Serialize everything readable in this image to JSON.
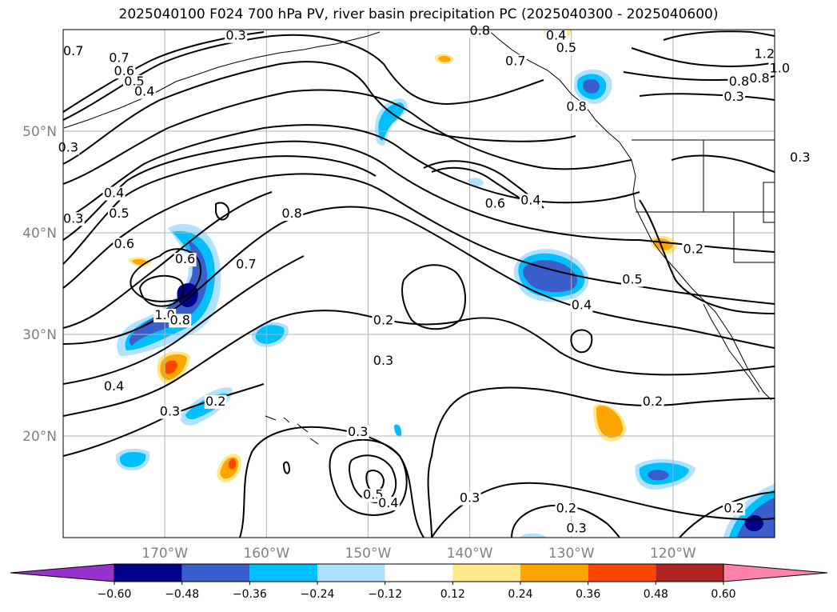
{
  "title": "2025040100 F024 700 hPa PV, river basin precipitation PC (2025040300 - 2025040600)",
  "map": {
    "lon_range": [
      -180,
      -110
    ],
    "lat_range": [
      10,
      60
    ],
    "lon_ticks": [
      {
        "value": -170,
        "label": "170°W"
      },
      {
        "value": -160,
        "label": "160°W"
      },
      {
        "value": -150,
        "label": "150°W"
      },
      {
        "value": -140,
        "label": "140°W"
      },
      {
        "value": -130,
        "label": "130°W"
      },
      {
        "value": -120,
        "label": "120°W"
      }
    ],
    "lat_ticks": [
      {
        "value": 20,
        "label": "20°N"
      },
      {
        "value": 30,
        "label": "30°N"
      },
      {
        "value": 40,
        "label": "40°N"
      },
      {
        "value": 50,
        "label": "50°N"
      }
    ],
    "gridlines": true
  },
  "colorbar": {
    "orientation": "horizontal",
    "extend": "both",
    "ticks": [
      "−0.60",
      "−0.48",
      "−0.36",
      "−0.24",
      "−0.12",
      "0.12",
      "0.24",
      "0.36",
      "0.48",
      "0.60"
    ],
    "colors": [
      "#9932cc",
      "#00008b",
      "#3a5fcd",
      "#00bfff",
      "#b0e2ff",
      "#ffffff",
      "#ffe88a",
      "#ffa500",
      "#ff4500",
      "#b22222",
      "#ff82ab"
    ]
  },
  "contour_labels": [
    {
      "text": "0.7",
      "lon": -179,
      "lat": 57.5
    },
    {
      "text": "0.7",
      "lon": -174.5,
      "lat": 56.8
    },
    {
      "text": "0.6",
      "lon": -174,
      "lat": 55.5
    },
    {
      "text": "0.5",
      "lon": -173,
      "lat": 54.5
    },
    {
      "text": "0.4",
      "lon": -172,
      "lat": 53.5
    },
    {
      "text": "0.3",
      "lon": -163,
      "lat": 59
    },
    {
      "text": "0.3",
      "lon": -179.5,
      "lat": 48
    },
    {
      "text": "0.4",
      "lon": -175,
      "lat": 43.5
    },
    {
      "text": "0.3",
      "lon": -179,
      "lat": 41
    },
    {
      "text": "0.5",
      "lon": -174.5,
      "lat": 41.5
    },
    {
      "text": "0.6",
      "lon": -174,
      "lat": 38.5
    },
    {
      "text": "0.6",
      "lon": -168,
      "lat": 37
    },
    {
      "text": "1.0",
      "lon": -170,
      "lat": 31.5
    },
    {
      "text": "0.8",
      "lon": -168.5,
      "lat": 31
    },
    {
      "text": "0.8",
      "lon": -157.5,
      "lat": 41.5
    },
    {
      "text": "0.7",
      "lon": -162,
      "lat": 36.5
    },
    {
      "text": "0.4",
      "lon": -175,
      "lat": 24.5
    },
    {
      "text": "0.3",
      "lon": -169.5,
      "lat": 22
    },
    {
      "text": "0.2",
      "lon": -165,
      "lat": 23
    },
    {
      "text": "0.8",
      "lon": -139,
      "lat": 59.5
    },
    {
      "text": "0.7",
      "lon": -135.5,
      "lat": 56.5
    },
    {
      "text": "0.4",
      "lon": -131.5,
      "lat": 59
    },
    {
      "text": "0.5",
      "lon": -130.5,
      "lat": 57.8
    },
    {
      "text": "0.8",
      "lon": -129.5,
      "lat": 52
    },
    {
      "text": "1.2",
      "lon": -111,
      "lat": 57.2
    },
    {
      "text": "1.0",
      "lon": -109.5,
      "lat": 55.8
    },
    {
      "text": "0.8",
      "lon": -111.5,
      "lat": 54.8
    },
    {
      "text": "0.8",
      "lon": -113.5,
      "lat": 54.5
    },
    {
      "text": "0.3",
      "lon": -114,
      "lat": 53
    },
    {
      "text": "0.3",
      "lon": -107.5,
      "lat": 47
    },
    {
      "text": "0.6",
      "lon": -137.5,
      "lat": 42.5
    },
    {
      "text": "0.4",
      "lon": -134,
      "lat": 42.8
    },
    {
      "text": "0.5",
      "lon": -124,
      "lat": 35
    },
    {
      "text": "0.4",
      "lon": -129,
      "lat": 32.5
    },
    {
      "text": "0.2",
      "lon": -118,
      "lat": 38
    },
    {
      "text": "0.2",
      "lon": -148.5,
      "lat": 31
    },
    {
      "text": "0.3",
      "lon": -148.5,
      "lat": 27
    },
    {
      "text": "0.2",
      "lon": -122,
      "lat": 23
    },
    {
      "text": "0.3",
      "lon": -151,
      "lat": 20
    },
    {
      "text": "0.5",
      "lon": -149.5,
      "lat": 13.8
    },
    {
      "text": "0.4",
      "lon": -148,
      "lat": 13
    },
    {
      "text": "0.3",
      "lon": -140,
      "lat": 13.5
    },
    {
      "text": "0.2",
      "lon": -130.5,
      "lat": 12.5
    },
    {
      "text": "0.3",
      "lon": -129.5,
      "lat": 10.5
    },
    {
      "text": "0.2",
      "lon": -114,
      "lat": 12.5
    }
  ]
}
